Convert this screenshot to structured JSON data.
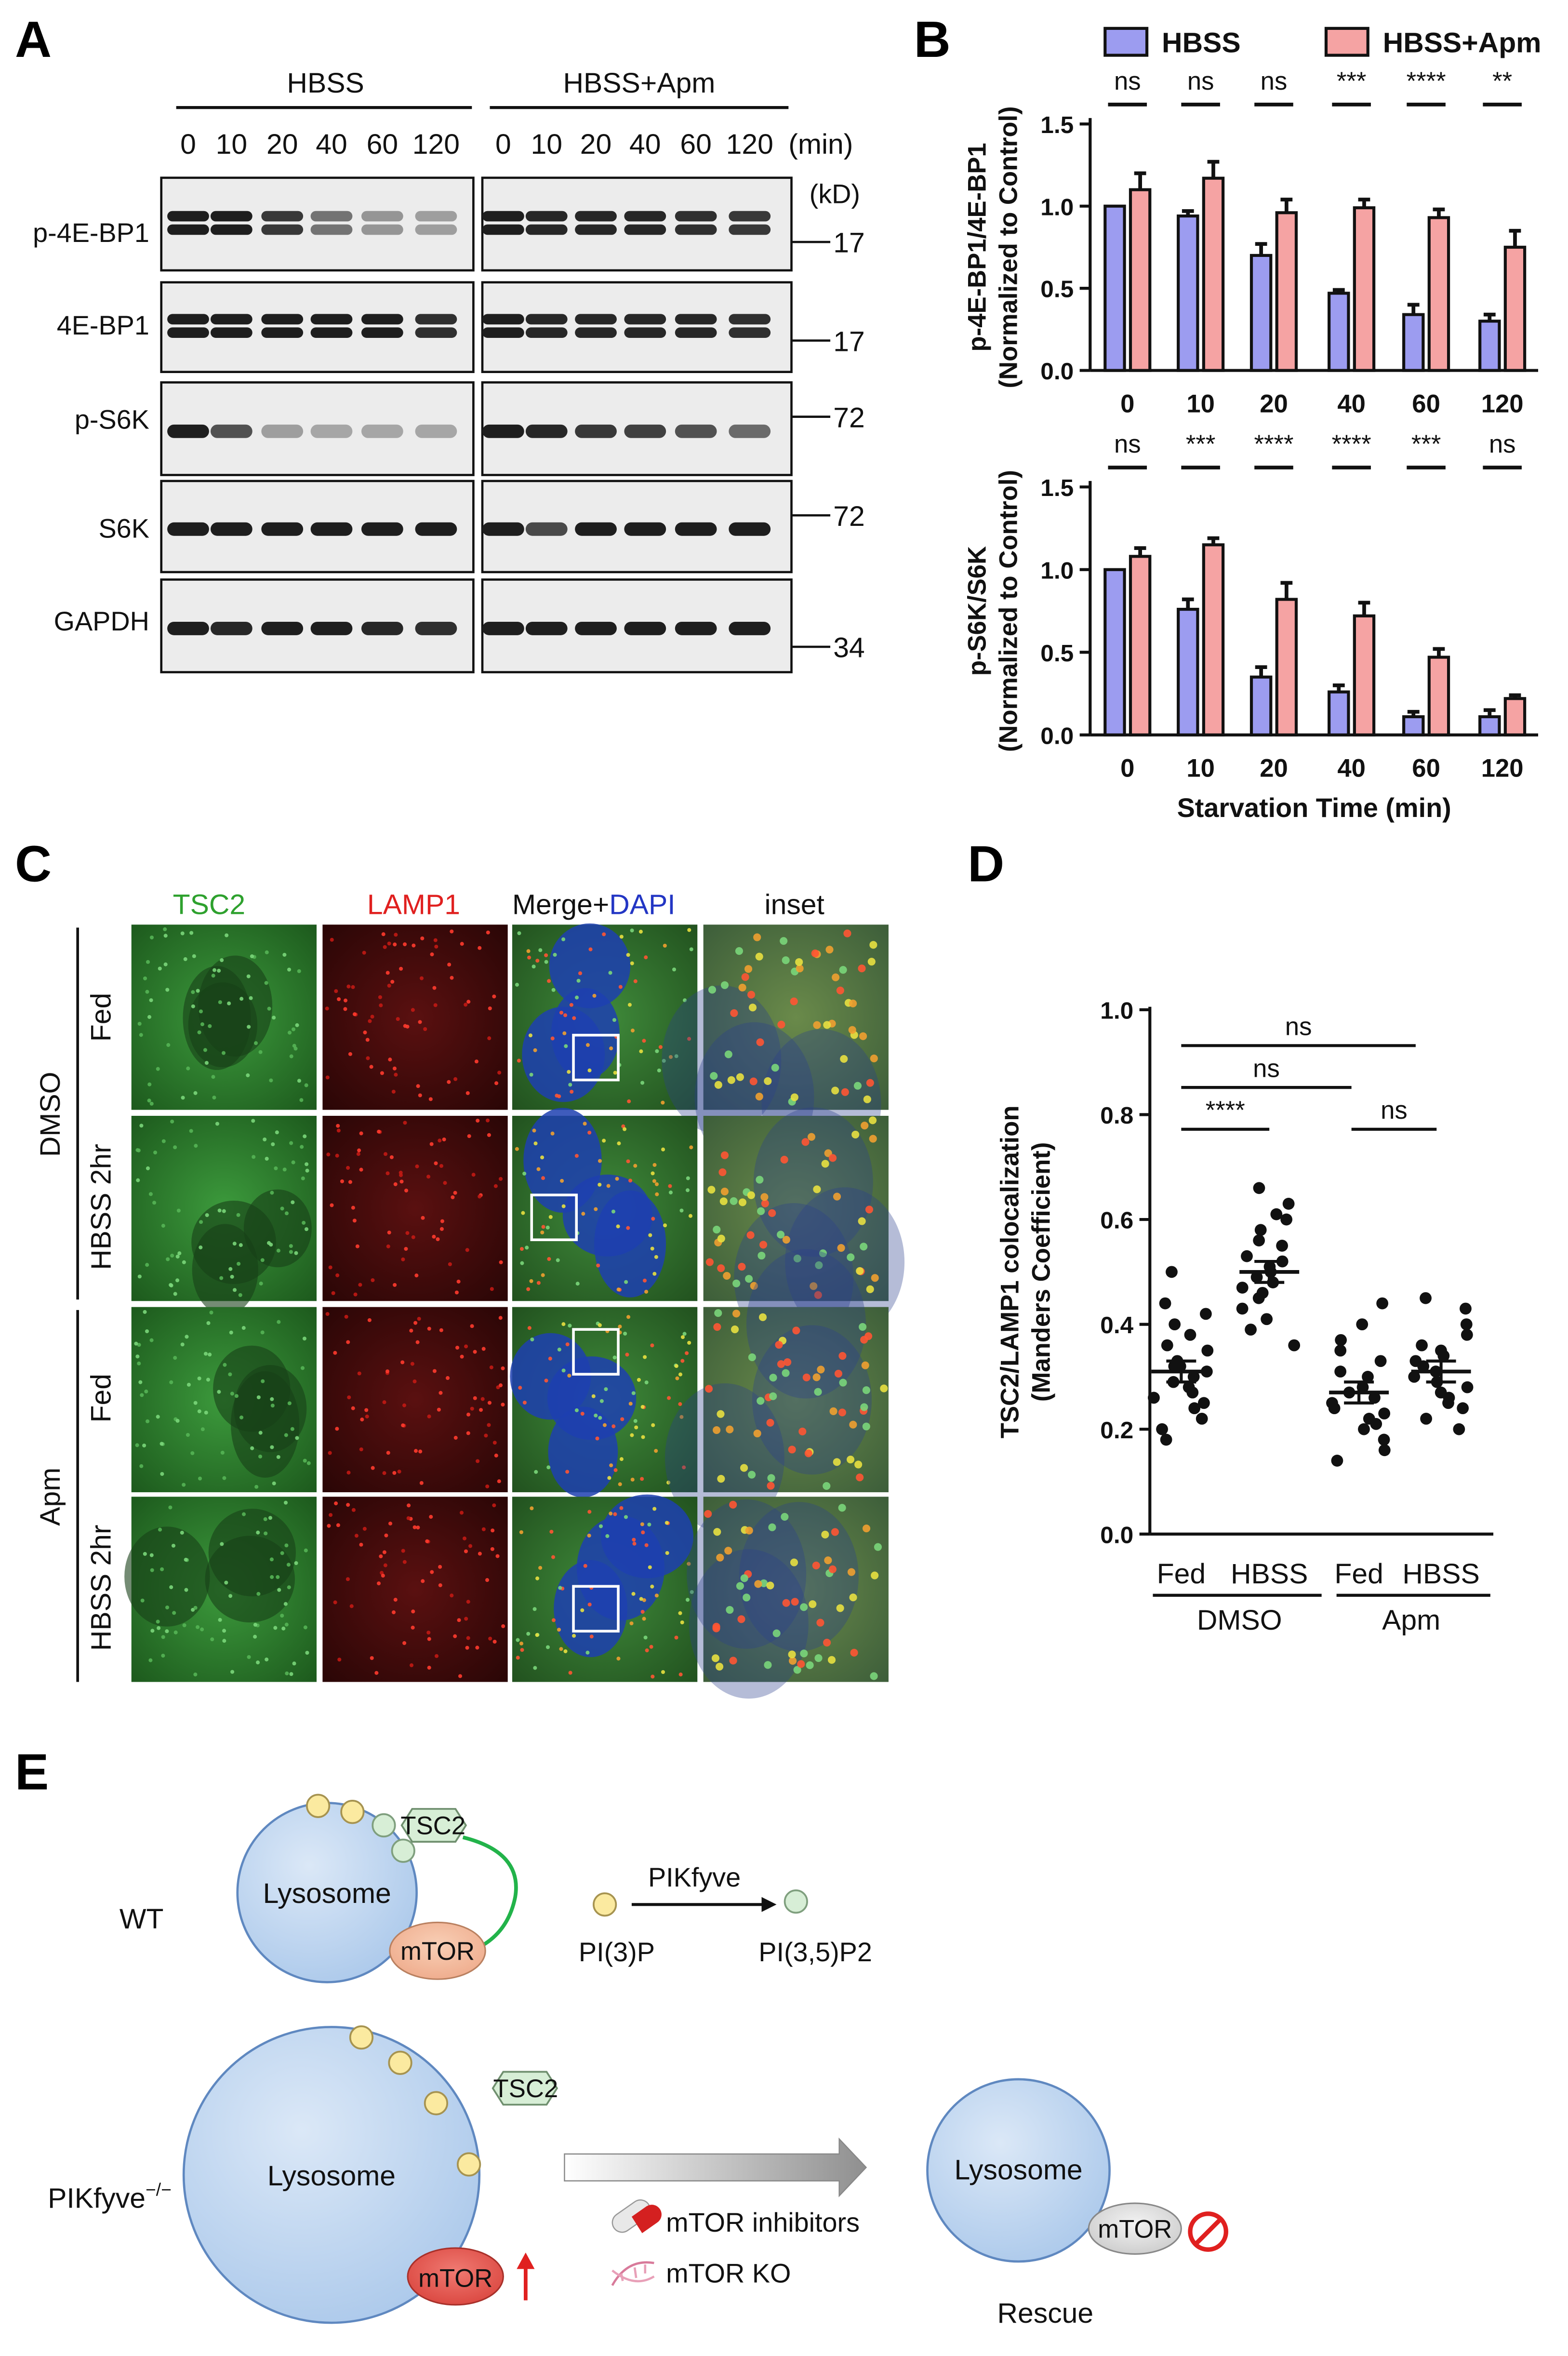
{
  "panel_letters": [
    "A",
    "B",
    "C",
    "D",
    "E"
  ],
  "panelA": {
    "group_headers": [
      "HBSS",
      "HBSS+Apm"
    ],
    "time_labels": [
      "0",
      "10",
      "20",
      "40",
      "60",
      "120"
    ],
    "time_unit": "(min)",
    "kd_label": "(kD)",
    "rows": [
      {
        "label": "p-4E-BP1",
        "marker": "17"
      },
      {
        "label": "4E-BP1",
        "marker": "17"
      },
      {
        "label": "p-S6K",
        "marker": "72"
      },
      {
        "label": "S6K",
        "marker": "72"
      },
      {
        "label": "GAPDH",
        "marker": "34"
      }
    ]
  },
  "panelB": {
    "legend": [
      "HBSS",
      "HBSS+Apm"
    ],
    "colors": {
      "HBSS": "#9c9cf0",
      "HBSS_Apm": "#f5a3a3"
    },
    "chart_data": [
      {
        "type": "bar",
        "ylabel": "p-4E-BP1/4E-BP1",
        "ylabel2": "(Normalized to Control)",
        "categories": [
          "0",
          "10",
          "20",
          "40",
          "60",
          "120"
        ],
        "yticks": [
          "0.0",
          "0.5",
          "1.0",
          "1.5"
        ],
        "ylim": [
          0,
          1.5
        ],
        "series": [
          {
            "name": "HBSS",
            "values": [
              1.0,
              0.94,
              0.7,
              0.47,
              0.34,
              0.3
            ],
            "errors": [
              0.0,
              0.03,
              0.07,
              0.02,
              0.06,
              0.04
            ]
          },
          {
            "name": "HBSS+Apm",
            "values": [
              1.1,
              1.17,
              0.96,
              0.99,
              0.93,
              0.75
            ],
            "errors": [
              0.1,
              0.1,
              0.08,
              0.05,
              0.05,
              0.1
            ]
          }
        ],
        "significance": [
          "ns",
          "ns",
          "ns",
          "***",
          "****",
          "**"
        ]
      },
      {
        "type": "bar",
        "ylabel": "p-S6K/S6K",
        "ylabel2": "(Normalized to Control)",
        "xlabel": "Starvation Time (min)",
        "categories": [
          "0",
          "10",
          "20",
          "40",
          "60",
          "120"
        ],
        "yticks": [
          "0.0",
          "0.5",
          "1.0",
          "1.5"
        ],
        "ylim": [
          0,
          1.5
        ],
        "series": [
          {
            "name": "HBSS",
            "values": [
              1.0,
              0.76,
              0.35,
              0.26,
              0.11,
              0.11
            ],
            "errors": [
              0.0,
              0.06,
              0.06,
              0.04,
              0.03,
              0.04
            ]
          },
          {
            "name": "HBSS+Apm",
            "values": [
              1.08,
              1.15,
              0.82,
              0.72,
              0.47,
              0.22
            ],
            "errors": [
              0.05,
              0.04,
              0.1,
              0.08,
              0.05,
              0.02
            ]
          }
        ],
        "significance": [
          "ns",
          "***",
          "****",
          "****",
          "***",
          "ns"
        ]
      },
      {
        "type": "scatter",
        "ylabel": "TSC2/LAMP1 colocalization",
        "ylabel2": "(Manders Coefficient)",
        "categories": [
          "Fed",
          "HBSS",
          "Fed",
          "HBSS"
        ],
        "groups": [
          "DMSO",
          "Apm"
        ],
        "yticks": [
          "0.0",
          "0.2",
          "0.4",
          "0.6",
          "0.8",
          "1.0"
        ],
        "ylim": [
          0,
          1.0
        ],
        "means": [
          0.31,
          0.5,
          0.27,
          0.31
        ],
        "sems": [
          0.02,
          0.02,
          0.02,
          0.02
        ],
        "points": [
          [
            0.5,
            0.44,
            0.42,
            0.4,
            0.38,
            0.36,
            0.35,
            0.33,
            0.32,
            0.32,
            0.31,
            0.3,
            0.29,
            0.28,
            0.27,
            0.26,
            0.25,
            0.24,
            0.22,
            0.2,
            0.18
          ],
          [
            0.66,
            0.63,
            0.61,
            0.6,
            0.58,
            0.56,
            0.55,
            0.53,
            0.52,
            0.51,
            0.5,
            0.49,
            0.48,
            0.47,
            0.46,
            0.45,
            0.43,
            0.41,
            0.39,
            0.36
          ],
          [
            0.44,
            0.4,
            0.37,
            0.35,
            0.33,
            0.31,
            0.3,
            0.28,
            0.27,
            0.26,
            0.25,
            0.24,
            0.23,
            0.22,
            0.21,
            0.2,
            0.18,
            0.16,
            0.14
          ],
          [
            0.45,
            0.43,
            0.4,
            0.38,
            0.36,
            0.35,
            0.34,
            0.33,
            0.32,
            0.31,
            0.3,
            0.29,
            0.28,
            0.27,
            0.26,
            0.25,
            0.24,
            0.22,
            0.2
          ]
        ],
        "comparisons": [
          "ns",
          "ns",
          "****",
          "ns"
        ]
      }
    ]
  },
  "panelC": {
    "col_headers": [
      "TSC2",
      "LAMP1",
      "Merge+",
      "DAPI",
      "inset"
    ],
    "treatments": [
      "DMSO",
      "Apm"
    ],
    "conditions": [
      "Fed",
      "HBSS 2hr",
      "Fed",
      "HBSS 2hr"
    ]
  },
  "panelD": {
    "x_labels": [
      "Fed",
      "HBSS",
      "Fed",
      "HBSS"
    ],
    "groups": [
      "DMSO",
      "Apm"
    ]
  },
  "panelE": {
    "wt_label": "WT",
    "ko_label": "PIKfyve",
    "ko_sup": "−/−",
    "lysosome": "Lysosome",
    "tsc2": "TSC2",
    "mtor": "mTOR",
    "enzyme": "PIKfyve",
    "substrate": "PI(3)P",
    "product": "PI(3,5)P2",
    "treatments": [
      "mTOR inhibitors",
      "mTOR KO"
    ],
    "rescue": "Rescue"
  }
}
